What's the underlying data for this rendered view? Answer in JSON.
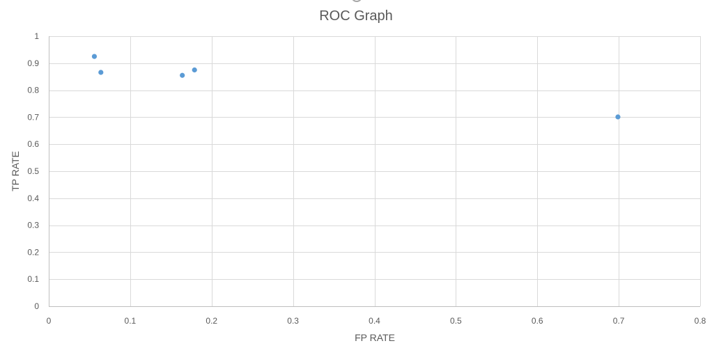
{
  "chart_data": {
    "type": "scatter",
    "title": "ROC Graph",
    "xlabel": "FP RATE",
    "ylabel": "TP RATE",
    "xlim": [
      0,
      0.8
    ],
    "ylim": [
      0,
      1
    ],
    "x_ticks": [
      "0",
      "0.1",
      "0.2",
      "0.3",
      "0.4",
      "0.5",
      "0.6",
      "0.7",
      "0.8"
    ],
    "y_ticks": [
      "0",
      "0.1",
      "0.2",
      "0.3",
      "0.4",
      "0.5",
      "0.6",
      "0.7",
      "0.8",
      "0.9",
      "1"
    ],
    "grid": true,
    "legend": "none",
    "marker_color": "#5b9bd5",
    "series": [
      {
        "points": [
          {
            "x": 0.056,
            "y": 0.925
          },
          {
            "x": 0.064,
            "y": 0.866
          },
          {
            "x": 0.164,
            "y": 0.855
          },
          {
            "x": 0.179,
            "y": 0.875
          },
          {
            "x": 0.699,
            "y": 0.701
          }
        ]
      }
    ]
  }
}
